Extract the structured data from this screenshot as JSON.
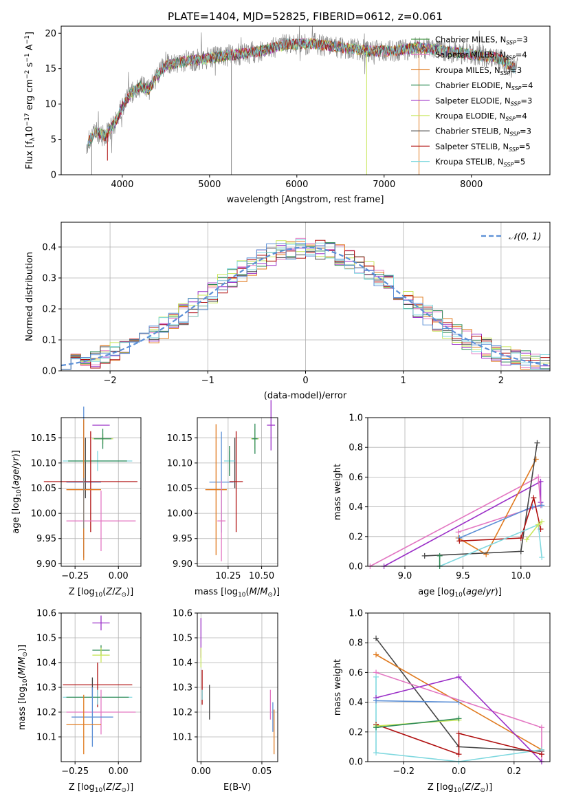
{
  "chart_data": [
    {
      "type": "line",
      "title": "PLATE=1404, MJD=52825, FIBERID=0612, z=0.061",
      "xlabel": "wavelength [Angstrom, rest frame]",
      "ylabel": "Flux [f_λ 10^-17 erg cm^-2 s^-1 A^-1]",
      "xlim": [
        3300,
        8900
      ],
      "ylim": [
        0,
        21
      ],
      "xticks": [
        "4000",
        "5000",
        "6000",
        "7000",
        "8000"
      ],
      "yticks": [
        "0",
        "5",
        "10",
        "15",
        "20"
      ],
      "legend_position": "right",
      "spectrum_anchor_wavelength": [
        3600,
        3700,
        3800,
        3900,
        4000,
        4100,
        4200,
        4300,
        4400,
        4500,
        4700,
        5000,
        5300,
        5600,
        5900,
        6200,
        6500,
        6800,
        7100,
        7400,
        7700,
        8000,
        8300,
        8500
      ],
      "spectrum_anchor_flux": [
        4.5,
        6.0,
        5.5,
        7.0,
        9.5,
        11.5,
        12.5,
        12.0,
        14.0,
        15.5,
        16.0,
        16.5,
        17.0,
        17.5,
        18.5,
        18.5,
        18.0,
        17.5,
        17.5,
        18.0,
        17.5,
        17.0,
        16.5,
        15.0
      ],
      "series": [
        {
          "name": "Chabrier MILES, N_SSP=3",
          "color": "#4a9a4a"
        },
        {
          "name": "Salpeter MILES, N_SSP=4",
          "color": "#e377c2"
        },
        {
          "name": "Kroupa MILES, N_SSP=3",
          "color": "#e07a1f"
        },
        {
          "name": "Chabrier ELODIE, N_SSP=4",
          "color": "#2e8b57"
        },
        {
          "name": "Salpeter ELODIE, N_SSP=3",
          "color": "#9b30c8"
        },
        {
          "name": "Kroupa ELODIE, N_SSP=4",
          "color": "#c8e65a"
        },
        {
          "name": "Chabrier STELIB, N_SSP=3",
          "color": "#444444"
        },
        {
          "name": "Salpeter STELIB, N_SSP=5",
          "color": "#b01010"
        },
        {
          "name": "Kroupa STELIB, N_SSP=5",
          "color": "#7fd8df"
        }
      ],
      "data_color": "#888888"
    },
    {
      "type": "step",
      "xlabel": "(data-model)/error",
      "ylabel": "Normed distribution",
      "xlim": [
        -2.5,
        2.5
      ],
      "ylim": [
        0,
        0.48
      ],
      "xticks": [
        "−2",
        "−1",
        "0",
        "1",
        "2"
      ],
      "yticks": [
        "0.0",
        "0.1",
        "0.2",
        "0.3",
        "0.4"
      ],
      "bin_width": 0.1,
      "reference_curve": {
        "name": "𝒩(0, 1)",
        "color": "#5b8fd6",
        "style": "dashed"
      },
      "histogram_colors": [
        "#e377c2",
        "#e07a1f",
        "#2e8b57",
        "#9b30c8",
        "#c8e65a",
        "#444444",
        "#b01010",
        "#7fd8df",
        "#5b8fd6"
      ]
    },
    {
      "type": "scatter-errorbar",
      "xlabel": "Z [log10(Z/Z⊙)]",
      "ylabel": "age  [log10(age/yr)]",
      "xlim": [
        -0.33,
        0.13
      ],
      "ylim": [
        9.895,
        10.19
      ],
      "xticks": [
        "−0.25",
        "0.00"
      ],
      "xtick_values": [
        -0.25,
        0.0
      ],
      "yticks": [
        "9.90",
        "9.95",
        "10.00",
        "10.05",
        "10.10",
        "10.15"
      ],
      "ytick_values": [
        9.9,
        9.95,
        10.0,
        10.05,
        10.1,
        10.15
      ],
      "points": [
        {
          "color": "#9b30c8",
          "x": -0.1,
          "xerr": 0.05,
          "y": 10.175,
          "yerr": 0.0
        },
        {
          "color": "#c8e65a",
          "x": -0.09,
          "xerr": 0.06,
          "y": 10.148,
          "yerr": 0.01
        },
        {
          "color": "#2e8b57",
          "x": -0.09,
          "xerr": 0.05,
          "y": 10.148,
          "yerr": 0.02
        },
        {
          "color": "#444444",
          "x": -0.19,
          "xerr": 0.0,
          "y": 10.09,
          "yerr": 0.06
        },
        {
          "color": "#7fd8df",
          "x": -0.12,
          "xerr": 0.2,
          "y": 10.104,
          "yerr": 0.02
        },
        {
          "color": "#2e8b57",
          "x": -0.12,
          "xerr": 0.17,
          "y": 10.104,
          "yerr": 0.0
        },
        {
          "color": "#5b8fd6",
          "x": -0.2,
          "xerr": 0.1,
          "y": 10.062,
          "yerr": 0.15
        },
        {
          "color": "#b01010",
          "x": -0.16,
          "xerr": 0.27,
          "y": 10.063,
          "yerr": 0.1
        },
        {
          "color": "#e07a1f",
          "x": -0.2,
          "xerr": 0.1,
          "y": 10.047,
          "yerr": 0.14
        },
        {
          "color": "#e377c2",
          "x": -0.1,
          "xerr": 0.2,
          "y": 9.985,
          "yerr": 0.06
        },
        {
          "color": "#888888",
          "x": -0.2,
          "xerr": 0.0,
          "y": 10.02,
          "yerr": 0.05
        }
      ]
    },
    {
      "type": "scatter-errorbar",
      "xlabel": "mass [log10(M/M⊙)]",
      "ylabel": "",
      "xlim": [
        10.02,
        10.62
      ],
      "ylim": [
        9.895,
        10.19
      ],
      "xticks": [
        "10.25",
        "10.50"
      ],
      "xtick_values": [
        10.25,
        10.5
      ],
      "yticks": [
        "9.90",
        "9.95",
        "10.00",
        "10.05",
        "10.10",
        "10.15"
      ],
      "ytick_values": [
        9.9,
        9.95,
        10.0,
        10.05,
        10.1,
        10.15
      ],
      "points": [
        {
          "color": "#9b30c8",
          "x": 10.57,
          "xerr": 0.03,
          "y": 10.175,
          "yerr": 0.05
        },
        {
          "color": "#c8e65a",
          "x": 10.45,
          "xerr": 0.03,
          "y": 10.148,
          "yerr": 0.02
        },
        {
          "color": "#2e8b57",
          "x": 10.45,
          "xerr": 0.02,
          "y": 10.148,
          "yerr": 0.03
        },
        {
          "color": "#444444",
          "x": 10.3,
          "xerr": 0.0,
          "y": 10.1,
          "yerr": 0.05
        },
        {
          "color": "#7fd8df",
          "x": 10.26,
          "xerr": 0.04,
          "y": 10.104,
          "yerr": 0.02
        },
        {
          "color": "#2e8b57",
          "x": 10.26,
          "xerr": 0.0,
          "y": 10.104,
          "yerr": 0.03
        },
        {
          "color": "#5b8fd6",
          "x": 10.2,
          "xerr": 0.09,
          "y": 10.062,
          "yerr": 0.1
        },
        {
          "color": "#b01010",
          "x": 10.31,
          "xerr": 0.05,
          "y": 10.063,
          "yerr": 0.1
        },
        {
          "color": "#e07a1f",
          "x": 10.16,
          "xerr": 0.08,
          "y": 10.047,
          "yerr": 0.13
        },
        {
          "color": "#e377c2",
          "x": 10.2,
          "xerr": 0.03,
          "y": 9.985,
          "yerr": 0.08
        }
      ]
    },
    {
      "type": "line",
      "xlabel": "age  [log10(age/yr)]",
      "ylabel": "mass weight",
      "xlim": [
        8.68,
        10.25
      ],
      "ylim": [
        0,
        1.0
      ],
      "xticks": [
        "9.0",
        "9.5",
        "10.0"
      ],
      "xtick_values": [
        9.0,
        9.5,
        10.0
      ],
      "yticks": [
        "0.0",
        "0.2",
        "0.4",
        "0.6",
        "0.8",
        "1.0"
      ],
      "ytick_values": [
        0,
        0.2,
        0.4,
        0.6,
        0.8,
        1.0
      ],
      "series": [
        {
          "color": "#9b30c8",
          "x": [
            8.82,
            10.17,
            10.17
          ],
          "y": [
            0.0,
            0.57,
            0.43
          ]
        },
        {
          "color": "#e377c2",
          "x": [
            8.7,
            10.15,
            10.17,
            9.46
          ],
          "y": [
            0.0,
            0.6,
            0.41,
            0.23
          ]
        },
        {
          "color": "#e07a1f",
          "x": [
            9.46,
            9.7,
            10.13
          ],
          "y": [
            0.19,
            0.08,
            0.72
          ]
        },
        {
          "color": "#5b8fd6",
          "x": [
            9.47,
            10.1,
            10.18
          ],
          "y": [
            0.19,
            0.4,
            0.41
          ]
        },
        {
          "color": "#444444",
          "x": [
            9.17,
            10.0,
            10.14
          ],
          "y": [
            0.07,
            0.1,
            0.83
          ]
        },
        {
          "color": "#b01010",
          "x": [
            9.47,
            10.0,
            10.11,
            10.17
          ],
          "y": [
            0.17,
            0.19,
            0.46,
            0.25
          ]
        },
        {
          "color": "#7fd8df",
          "x": [
            9.3,
            10.15,
            10.18
          ],
          "y": [
            0.0,
            0.28,
            0.06
          ]
        },
        {
          "color": "#c8e65a",
          "x": [
            10.05,
            10.15,
            10.18
          ],
          "y": [
            0.18,
            0.28,
            0.3
          ]
        },
        {
          "color": "#2e8b57",
          "x": [
            9.3,
            9.3
          ],
          "y": [
            0.0,
            0.07
          ]
        }
      ]
    },
    {
      "type": "scatter-errorbar",
      "xlabel": "Z [log10(Z/Z⊙)]",
      "ylabel": "mass [log10(M/M⊙)]",
      "xlim": [
        -0.33,
        0.13
      ],
      "ylim": [
        10.0,
        10.6
      ],
      "xticks": [
        "−0.25",
        "0.00"
      ],
      "xtick_values": [
        -0.25,
        0.0
      ],
      "yticks": [
        "10.1",
        "10.2",
        "10.3",
        "10.4",
        "10.5",
        "10.6"
      ],
      "ytick_values": [
        10.1,
        10.2,
        10.3,
        10.4,
        10.5,
        10.6
      ],
      "points": [
        {
          "color": "#9b30c8",
          "x": -0.1,
          "xerr": 0.05,
          "y": 10.56,
          "yerr": 0.03
        },
        {
          "color": "#2e8b57",
          "x": -0.1,
          "xerr": 0.05,
          "y": 10.45,
          "yerr": 0.02
        },
        {
          "color": "#c8e65a",
          "x": -0.1,
          "xerr": 0.05,
          "y": 10.43,
          "yerr": 0.03
        },
        {
          "color": "#b01010",
          "x": -0.12,
          "xerr": 0.2,
          "y": 10.31,
          "yerr": 0.09
        },
        {
          "color": "#444444",
          "x": -0.15,
          "xerr": 0.0,
          "y": 10.3,
          "yerr": 0.04
        },
        {
          "color": "#7fd8df",
          "x": -0.12,
          "xerr": 0.2,
          "y": 10.26,
          "yerr": 0.03
        },
        {
          "color": "#2e8b57",
          "x": -0.12,
          "xerr": 0.18,
          "y": 10.26,
          "yerr": 0.0
        },
        {
          "color": "#e377c2",
          "x": -0.1,
          "xerr": 0.2,
          "y": 10.2,
          "yerr": 0.09
        },
        {
          "color": "#5b8fd6",
          "x": -0.15,
          "xerr": 0.12,
          "y": 10.18,
          "yerr": 0.12
        },
        {
          "color": "#e07a1f",
          "x": -0.2,
          "xerr": 0.1,
          "y": 10.15,
          "yerr": 0.12
        }
      ]
    },
    {
      "type": "scatter-errorbar",
      "xlabel": "E(B-V)",
      "ylabel": "",
      "xlim": [
        -0.003,
        0.063
      ],
      "ylim": [
        10.0,
        10.6
      ],
      "xticks": [
        "0.00",
        "0.05"
      ],
      "xtick_values": [
        0.0,
        0.05
      ],
      "yticks": [
        "10.1",
        "10.2",
        "10.3",
        "10.4",
        "10.5",
        "10.6"
      ],
      "ytick_values": [
        10.1,
        10.2,
        10.3,
        10.4,
        10.5,
        10.6
      ],
      "points": [
        {
          "color": "#9b30c8",
          "x": 0.0,
          "xerr": 0.0,
          "y": 10.5,
          "yerr": 0.08
        },
        {
          "color": "#c8e65a",
          "x": 0.0,
          "xerr": 0.0,
          "y": 10.42,
          "yerr": 0.04
        },
        {
          "color": "#b01010",
          "x": 0.001,
          "xerr": 0.0,
          "y": 10.3,
          "yerr": 0.07
        },
        {
          "color": "#7fd8df",
          "x": 0.001,
          "xerr": 0.0,
          "y": 10.27,
          "yerr": 0.02
        },
        {
          "color": "#444444",
          "x": 0.007,
          "xerr": 0.0,
          "y": 10.24,
          "yerr": 0.07
        },
        {
          "color": "#e377c2",
          "x": 0.057,
          "xerr": 0.0,
          "y": 10.23,
          "yerr": 0.06
        },
        {
          "color": "#5b8fd6",
          "x": 0.059,
          "xerr": 0.0,
          "y": 10.18,
          "yerr": 0.06
        },
        {
          "color": "#e07a1f",
          "x": 0.06,
          "xerr": 0.0,
          "y": 10.12,
          "yerr": 0.09
        }
      ]
    },
    {
      "type": "line",
      "xlabel": "Z [log10(Z/Z⊙)]",
      "ylabel": "mass weight",
      "xlim": [
        -0.33,
        0.33
      ],
      "ylim": [
        0,
        1.0
      ],
      "xticks": [
        "−0.2",
        "0.0",
        "0.2"
      ],
      "xtick_values": [
        -0.2,
        0.0,
        0.2
      ],
      "yticks": [
        "0.0",
        "0.2",
        "0.4",
        "0.6",
        "0.8",
        "1.0"
      ],
      "ytick_values": [
        0,
        0.2,
        0.4,
        0.6,
        0.8,
        1.0
      ],
      "series": [
        {
          "color": "#444444",
          "x": [
            -0.3,
            0.0,
            0.3
          ],
          "y": [
            0.83,
            0.1,
            0.07
          ]
        },
        {
          "color": "#e07a1f",
          "x": [
            -0.3,
            0.3
          ],
          "y": [
            0.72,
            0.08
          ]
        },
        {
          "color": "#e377c2",
          "x": [
            -0.3,
            0.3,
            0.3
          ],
          "y": [
            0.6,
            0.23,
            0.0
          ]
        },
        {
          "color": "#7fd8df",
          "x": [
            -0.3,
            -0.3,
            0.0,
            0.3
          ],
          "y": [
            0.57,
            0.06,
            0.0,
            0.08
          ]
        },
        {
          "color": "#9b30c8",
          "x": [
            -0.3,
            0.0,
            0.3
          ],
          "y": [
            0.43,
            0.57,
            0.0
          ]
        },
        {
          "color": "#5b8fd6",
          "x": [
            -0.3,
            0.0
          ],
          "y": [
            0.41,
            0.4
          ]
        },
        {
          "color": "#b01010",
          "x": [
            -0.3,
            0.0,
            0.0,
            0.3
          ],
          "y": [
            0.25,
            0.05,
            0.19,
            0.05
          ]
        },
        {
          "color": "#c8e65a",
          "x": [
            -0.3,
            0.0
          ],
          "y": [
            0.24,
            0.28
          ]
        },
        {
          "color": "#2e8b57",
          "x": [
            -0.3,
            0.0
          ],
          "y": [
            0.23,
            0.29
          ]
        }
      ]
    }
  ]
}
